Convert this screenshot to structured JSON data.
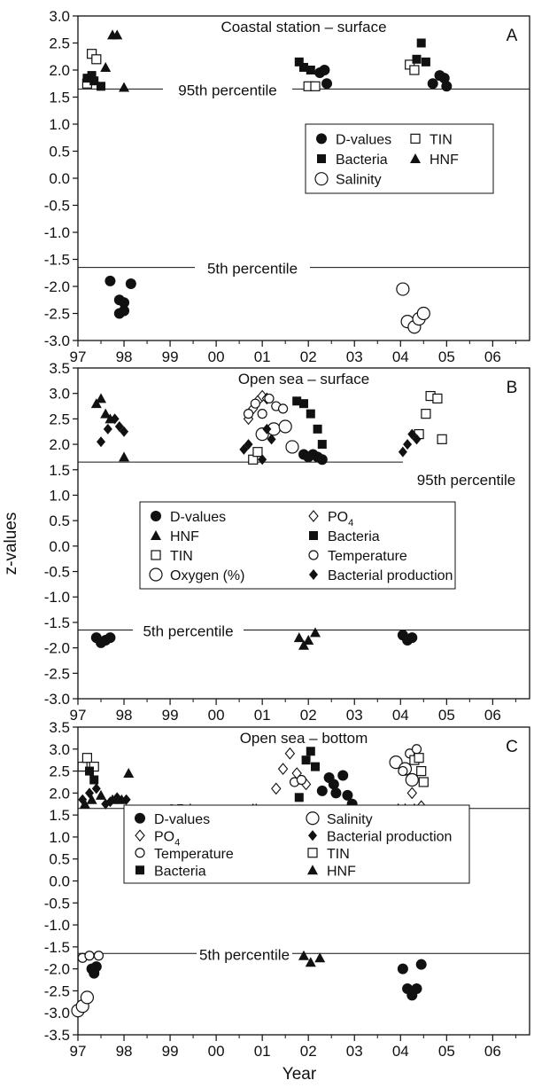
{
  "figure": {
    "ylabel": "z-values",
    "xlabel": "Year"
  },
  "chart_data": [
    {
      "type": "scatter",
      "panel_label": "A",
      "title": "Coastal station – surface",
      "ylim": [
        -3.0,
        3.0
      ],
      "xlim": [
        97,
        106.8
      ],
      "x_tick_values": [
        97,
        98,
        99,
        100,
        101,
        102,
        103,
        104,
        105,
        106
      ],
      "x_tick_labels": [
        "97",
        "98",
        "99",
        "00",
        "01",
        "02",
        "03",
        "04",
        "05",
        "06"
      ],
      "y_tick_values": [
        3.0,
        2.5,
        2.0,
        1.5,
        1.0,
        0.5,
        0.0,
        -0.5,
        -1.0,
        -1.5,
        -2.0,
        -2.5,
        -3.0
      ],
      "y_tick_labels": [
        "3.0",
        "2.5",
        "2.0",
        "1.5",
        "1.0",
        "0.5",
        "0.0",
        "-0.5",
        "-1.0",
        "-1.5",
        "-2.0",
        "-2.5",
        "-3.0"
      ],
      "reference_lines": [
        {
          "label": "95th percentile",
          "y": 1.65
        },
        {
          "label": "5th percentile",
          "y": -1.65
        }
      ],
      "legend_placement": "middle-right",
      "legend_columns": 2,
      "series": [
        {
          "name": "D-values",
          "marker": "filled-circle",
          "points": [
            [
              97.7,
              -1.9
            ],
            [
              97.9,
              -2.25
            ],
            [
              98.0,
              -2.3
            ],
            [
              98.15,
              -1.95
            ],
            [
              97.9,
              -2.5
            ],
            [
              98.0,
              -2.45
            ],
            [
              102.25,
              1.95
            ],
            [
              102.35,
              2.0
            ],
            [
              102.4,
              1.75
            ],
            [
              104.7,
              1.75
            ],
            [
              104.85,
              1.9
            ],
            [
              104.95,
              1.85
            ],
            [
              105.0,
              1.7
            ]
          ]
        },
        {
          "name": "TIN",
          "marker": "open-square",
          "points": [
            [
              97.2,
              1.75
            ],
            [
              97.3,
              2.3
            ],
            [
              97.4,
              2.2
            ],
            [
              102.0,
              1.7
            ],
            [
              102.15,
              1.7
            ],
            [
              104.2,
              2.1
            ],
            [
              104.3,
              2.0
            ]
          ]
        },
        {
          "name": "Bacteria",
          "marker": "filled-square",
          "points": [
            [
              97.2,
              1.85
            ],
            [
              97.3,
              1.9
            ],
            [
              97.35,
              1.8
            ],
            [
              97.5,
              1.7
            ],
            [
              101.8,
              2.15
            ],
            [
              101.9,
              2.05
            ],
            [
              102.05,
              2.0
            ],
            [
              104.35,
              2.2
            ],
            [
              104.45,
              2.5
            ],
            [
              104.55,
              2.15
            ]
          ]
        },
        {
          "name": "HNF",
          "marker": "filled-triangle",
          "points": [
            [
              97.6,
              2.05
            ],
            [
              97.75,
              2.65
            ],
            [
              97.85,
              2.65
            ],
            [
              98.0,
              1.68
            ]
          ]
        },
        {
          "name": "Salinity",
          "marker": "open-circle",
          "points": [
            [
              104.05,
              -2.05
            ],
            [
              104.15,
              -2.65
            ],
            [
              104.3,
              -2.75
            ],
            [
              104.4,
              -2.6
            ],
            [
              104.5,
              -2.5
            ]
          ]
        }
      ]
    },
    {
      "type": "scatter",
      "panel_label": "B",
      "title": "Open sea – surface",
      "ylim": [
        -3.0,
        3.5
      ],
      "xlim": [
        97,
        106.8
      ],
      "x_tick_values": [
        97,
        98,
        99,
        100,
        101,
        102,
        103,
        104,
        105,
        106
      ],
      "x_tick_labels": [
        "97",
        "98",
        "99",
        "00",
        "01",
        "02",
        "03",
        "04",
        "05",
        "06"
      ],
      "y_tick_values": [
        3.5,
        3.0,
        2.5,
        2.0,
        1.5,
        1.0,
        0.5,
        0.0,
        -0.5,
        -1.0,
        -1.5,
        -2.0,
        -2.5,
        -3.0
      ],
      "y_tick_labels": [
        "3.5",
        "3.0",
        "2.5",
        "2.0",
        "1.5",
        "1.0",
        "0.5",
        "0.0",
        "-0.5",
        "-1.0",
        "-1.5",
        "-2.0",
        "-2.5",
        "-3.0"
      ],
      "reference_lines": [
        {
          "label": "95th percentile",
          "y": 1.65
        },
        {
          "label": "5th percentile",
          "y": -1.65
        }
      ],
      "legend_placement": "middle-left",
      "legend_columns": 2,
      "series": [
        {
          "name": "D-values",
          "marker": "filled-circle",
          "points": [
            [
              97.4,
              -1.8
            ],
            [
              97.5,
              -1.9
            ],
            [
              97.6,
              -1.85
            ],
            [
              97.7,
              -1.8
            ],
            [
              101.9,
              1.8
            ],
            [
              102.0,
              1.75
            ],
            [
              102.1,
              1.8
            ],
            [
              102.2,
              1.75
            ],
            [
              102.3,
              1.7
            ],
            [
              104.05,
              -1.75
            ],
            [
              104.15,
              -1.85
            ],
            [
              104.25,
              -1.8
            ]
          ]
        },
        {
          "name": "PO4",
          "marker": "open-diamond",
          "points": [
            [
              100.7,
              2.5
            ],
            [
              100.8,
              2.7
            ],
            [
              100.9,
              2.85
            ],
            [
              101.0,
              2.95
            ],
            [
              101.1,
              2.9
            ]
          ]
        },
        {
          "name": "HNF",
          "marker": "filled-triangle",
          "points": [
            [
              97.4,
              2.8
            ],
            [
              97.5,
              2.9
            ],
            [
              97.6,
              2.6
            ],
            [
              97.7,
              2.5
            ],
            [
              98.0,
              1.75
            ],
            [
              101.8,
              -1.8
            ],
            [
              101.9,
              -1.95
            ],
            [
              102.0,
              -1.85
            ],
            [
              102.15,
              -1.7
            ]
          ]
        },
        {
          "name": "Bacteria",
          "marker": "filled-square",
          "points": [
            [
              101.75,
              2.85
            ],
            [
              101.9,
              2.8
            ],
            [
              102.05,
              2.6
            ],
            [
              102.2,
              2.3
            ],
            [
              102.3,
              2.0
            ]
          ]
        },
        {
          "name": "TIN",
          "marker": "open-square",
          "points": [
            [
              100.8,
              1.7
            ],
            [
              100.9,
              1.85
            ],
            [
              104.4,
              2.2
            ],
            [
              104.55,
              2.6
            ],
            [
              104.65,
              2.95
            ],
            [
              104.8,
              2.9
            ],
            [
              104.9,
              2.1
            ]
          ]
        },
        {
          "name": "Temperature",
          "marker": "small-open-circle",
          "points": [
            [
              100.7,
              2.6
            ],
            [
              100.85,
              2.8
            ],
            [
              101.0,
              2.6
            ],
            [
              101.15,
              2.9
            ],
            [
              101.3,
              2.75
            ],
            [
              101.45,
              2.7
            ]
          ]
        },
        {
          "name": "Oxygen (%)",
          "marker": "open-circle",
          "points": [
            [
              101.0,
              2.2
            ],
            [
              101.25,
              2.3
            ],
            [
              101.5,
              2.35
            ],
            [
              101.65,
              1.95
            ]
          ]
        },
        {
          "name": "Bacterial production",
          "marker": "filled-diamond",
          "points": [
            [
              97.5,
              2.05
            ],
            [
              97.65,
              2.3
            ],
            [
              97.8,
              2.5
            ],
            [
              97.9,
              2.35
            ],
            [
              98.0,
              2.25
            ],
            [
              100.6,
              1.9
            ],
            [
              100.7,
              2.0
            ],
            [
              101.0,
              1.7
            ],
            [
              101.1,
              2.3
            ],
            [
              101.2,
              2.1
            ],
            [
              104.05,
              1.85
            ],
            [
              104.15,
              2.0
            ],
            [
              104.25,
              2.2
            ],
            [
              104.35,
              2.1
            ]
          ]
        }
      ]
    },
    {
      "type": "scatter",
      "panel_label": "C",
      "title": "Open sea – bottom",
      "ylim": [
        -3.5,
        3.5
      ],
      "xlim": [
        97,
        106.8
      ],
      "x_tick_values": [
        97,
        98,
        99,
        100,
        101,
        102,
        103,
        104,
        105,
        106
      ],
      "x_tick_labels": [
        "97",
        "98",
        "99",
        "00",
        "01",
        "02",
        "03",
        "04",
        "05",
        "06"
      ],
      "y_tick_values": [
        3.5,
        3.0,
        2.5,
        2.0,
        1.5,
        1.0,
        0.5,
        0.0,
        -0.5,
        -1.0,
        -1.5,
        -2.0,
        -2.5,
        -3.0,
        -3.5
      ],
      "y_tick_labels": [
        "3.5",
        "3.0",
        "2.5",
        "2.0",
        "1.5",
        "1.0",
        "0.5",
        "0.0",
        "-0.5",
        "-1.0",
        "-1.5",
        "-2.0",
        "-2.5",
        "-3.0",
        "-3.5"
      ],
      "reference_lines": [
        {
          "label": "95th percentile",
          "y": 1.65
        },
        {
          "label": "5th percentile",
          "y": -1.65
        }
      ],
      "legend_placement": "middle-left",
      "legend_columns": 2,
      "series": [
        {
          "name": "D-values",
          "marker": "filled-circle",
          "points": [
            [
              97.3,
              -2.0
            ],
            [
              97.4,
              -1.95
            ],
            [
              97.35,
              -2.1
            ],
            [
              102.3,
              2.05
            ],
            [
              102.45,
              2.35
            ],
            [
              102.55,
              2.2
            ],
            [
              102.6,
              2.0
            ],
            [
              102.75,
              2.4
            ],
            [
              102.85,
              1.95
            ],
            [
              102.95,
              1.75
            ],
            [
              104.05,
              -2.0
            ],
            [
              104.15,
              -2.45
            ],
            [
              104.25,
              -2.6
            ],
            [
              104.35,
              -2.45
            ],
            [
              104.45,
              -1.9
            ]
          ]
        },
        {
          "name": "Salinity",
          "marker": "open-circle",
          "points": [
            [
              97.0,
              -2.95
            ],
            [
              97.1,
              -2.85
            ],
            [
              97.2,
              -2.65
            ],
            [
              103.9,
              2.7
            ],
            [
              104.1,
              2.55
            ],
            [
              104.25,
              2.3
            ]
          ]
        },
        {
          "name": "PO4",
          "marker": "open-diamond",
          "points": [
            [
              101.3,
              2.1
            ],
            [
              101.45,
              2.55
            ],
            [
              101.6,
              2.9
            ],
            [
              101.75,
              2.45
            ],
            [
              101.95,
              2.2
            ],
            [
              104.25,
              2.0
            ],
            [
              104.45,
              1.7
            ]
          ]
        },
        {
          "name": "Bacterial production",
          "marker": "filled-diamond",
          "points": [
            [
              97.1,
              1.85
            ],
            [
              97.25,
              2.0
            ],
            [
              97.4,
              2.1
            ],
            [
              97.6,
              1.75
            ],
            [
              97.7,
              1.8
            ],
            [
              97.85,
              1.9
            ],
            [
              98.05,
              1.85
            ]
          ]
        },
        {
          "name": "Temperature",
          "marker": "small-open-circle",
          "points": [
            [
              97.1,
              -1.75
            ],
            [
              97.25,
              -1.7
            ],
            [
              97.45,
              -1.7
            ],
            [
              101.7,
              2.25
            ],
            [
              101.85,
              2.3
            ],
            [
              104.05,
              2.5
            ],
            [
              104.2,
              2.9
            ],
            [
              104.35,
              3.0
            ]
          ]
        },
        {
          "name": "TIN",
          "marker": "open-square",
          "points": [
            [
              97.1,
              2.6
            ],
            [
              97.2,
              2.8
            ],
            [
              97.35,
              2.6
            ],
            [
              104.3,
              2.75
            ],
            [
              104.4,
              2.8
            ],
            [
              104.45,
              2.5
            ],
            [
              104.5,
              2.25
            ]
          ]
        },
        {
          "name": "Bacteria",
          "marker": "filled-square",
          "points": [
            [
              97.25,
              2.5
            ],
            [
              97.35,
              2.3
            ],
            [
              101.8,
              1.9
            ],
            [
              101.95,
              2.75
            ],
            [
              102.05,
              2.95
            ],
            [
              102.15,
              2.6
            ]
          ]
        },
        {
          "name": "HNF",
          "marker": "filled-triangle",
          "points": [
            [
              97.15,
              1.75
            ],
            [
              97.3,
              1.85
            ],
            [
              97.5,
              1.95
            ],
            [
              97.75,
              1.85
            ],
            [
              97.95,
              1.85
            ],
            [
              98.1,
              2.45
            ],
            [
              101.9,
              -1.7
            ],
            [
              102.05,
              -1.85
            ],
            [
              102.25,
              -1.75
            ],
            [
              103.95,
              1.65
            ],
            [
              104.1,
              1.65
            ],
            [
              104.3,
              1.65
            ]
          ]
        }
      ]
    }
  ]
}
